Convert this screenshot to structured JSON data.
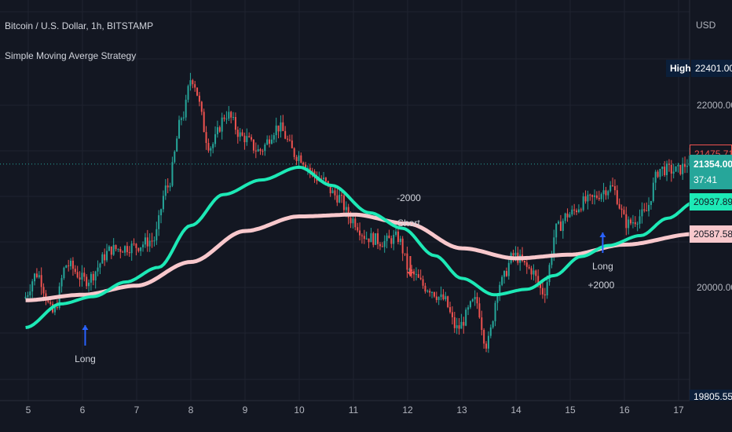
{
  "header": {
    "title": "Bitcoin / U.S. Dollar, 1h, BITSTAMP",
    "indicator": "Simple Moving Averge Strategy"
  },
  "price_scale": {
    "currency": "USD",
    "high_label": "High",
    "high_value": "22401.00",
    "level_22000": "22000.00",
    "level_20000": "20000.00",
    "last_value": "21354.00",
    "countdown": "37:41",
    "fast_ma_value": "20937.89",
    "slow_ma_value": "20587.58",
    "red_value": "21475.71",
    "low_partial": "19805.55"
  },
  "colors": {
    "background": "#131722",
    "up": "#26a69a",
    "down": "#ef5350",
    "fast_ma": "#1de9b6",
    "slow_ma": "#f8c8cc",
    "long_arrow": "#2962ff",
    "short_arrow": "#ef5350"
  },
  "chart_data": {
    "type": "candlestick",
    "x_ticks": [
      "5",
      "6",
      "7",
      "8",
      "9",
      "10",
      "11",
      "12",
      "13",
      "14",
      "15",
      "16",
      "17"
    ],
    "ylim": [
      19750,
      22450
    ],
    "close_anchors": [
      {
        "day": 4.95,
        "price": 19880
      },
      {
        "day": 5.2,
        "price": 20150
      },
      {
        "day": 5.5,
        "price": 19720
      },
      {
        "day": 5.75,
        "price": 20250
      },
      {
        "day": 6.1,
        "price": 20080
      },
      {
        "day": 6.6,
        "price": 20420
      },
      {
        "day": 7.0,
        "price": 20450
      },
      {
        "day": 7.35,
        "price": 20520
      },
      {
        "day": 7.6,
        "price": 21100
      },
      {
        "day": 7.9,
        "price": 21900
      },
      {
        "day": 8.05,
        "price": 22300
      },
      {
        "day": 8.4,
        "price": 21550
      },
      {
        "day": 8.7,
        "price": 21900
      },
      {
        "day": 9.0,
        "price": 21650
      },
      {
        "day": 9.3,
        "price": 21500
      },
      {
        "day": 9.65,
        "price": 21760
      },
      {
        "day": 10.0,
        "price": 21450
      },
      {
        "day": 10.4,
        "price": 21200
      },
      {
        "day": 10.75,
        "price": 21000
      },
      {
        "day": 11.0,
        "price": 20750
      },
      {
        "day": 11.3,
        "price": 20550
      },
      {
        "day": 11.6,
        "price": 20500
      },
      {
        "day": 11.85,
        "price": 20550
      },
      {
        "day": 12.1,
        "price": 20150
      },
      {
        "day": 12.4,
        "price": 20000
      },
      {
        "day": 12.7,
        "price": 19870
      },
      {
        "day": 12.95,
        "price": 19550
      },
      {
        "day": 13.3,
        "price": 19850
      },
      {
        "day": 13.5,
        "price": 19380
      },
      {
        "day": 13.75,
        "price": 20050
      },
      {
        "day": 14.0,
        "price": 20350
      },
      {
        "day": 14.3,
        "price": 20200
      },
      {
        "day": 14.55,
        "price": 19950
      },
      {
        "day": 14.8,
        "price": 20650
      },
      {
        "day": 15.0,
        "price": 20800
      },
      {
        "day": 15.35,
        "price": 20950
      },
      {
        "day": 15.8,
        "price": 21100
      },
      {
        "day": 16.1,
        "price": 20700
      },
      {
        "day": 16.4,
        "price": 20800
      },
      {
        "day": 16.7,
        "price": 21300
      },
      {
        "day": 17.0,
        "price": 21280
      },
      {
        "day": 17.3,
        "price": 21400
      }
    ],
    "series": [
      {
        "name": "Fast MA",
        "points": [
          {
            "day": 4.95,
            "price": 19560
          },
          {
            "day": 5.6,
            "price": 19820
          },
          {
            "day": 6.2,
            "price": 19900
          },
          {
            "day": 6.8,
            "price": 20060
          },
          {
            "day": 7.4,
            "price": 20220
          },
          {
            "day": 8.0,
            "price": 20680
          },
          {
            "day": 8.6,
            "price": 21020
          },
          {
            "day": 9.3,
            "price": 21180
          },
          {
            "day": 10.0,
            "price": 21320
          },
          {
            "day": 10.6,
            "price": 21120
          },
          {
            "day": 11.3,
            "price": 20820
          },
          {
            "day": 11.9,
            "price": 20650
          },
          {
            "day": 12.5,
            "price": 20350
          },
          {
            "day": 13.0,
            "price": 20100
          },
          {
            "day": 13.6,
            "price": 19920
          },
          {
            "day": 14.2,
            "price": 19980
          },
          {
            "day": 14.7,
            "price": 20130
          },
          {
            "day": 15.2,
            "price": 20340
          },
          {
            "day": 15.7,
            "price": 20460
          },
          {
            "day": 16.3,
            "price": 20570
          },
          {
            "day": 16.8,
            "price": 20760
          },
          {
            "day": 17.3,
            "price": 20937
          }
        ]
      },
      {
        "name": "Slow MA",
        "points": [
          {
            "day": 4.95,
            "price": 19860
          },
          {
            "day": 6.0,
            "price": 19920
          },
          {
            "day": 7.0,
            "price": 20020
          },
          {
            "day": 8.0,
            "price": 20280
          },
          {
            "day": 9.0,
            "price": 20620
          },
          {
            "day": 10.0,
            "price": 20780
          },
          {
            "day": 11.0,
            "price": 20800
          },
          {
            "day": 12.0,
            "price": 20700
          },
          {
            "day": 13.0,
            "price": 20430
          },
          {
            "day": 14.0,
            "price": 20320
          },
          {
            "day": 15.0,
            "price": 20360
          },
          {
            "day": 16.0,
            "price": 20470
          },
          {
            "day": 17.3,
            "price": 20587
          }
        ]
      }
    ],
    "signals": [
      {
        "label": "Long",
        "day": 6.05,
        "dir": "up"
      },
      {
        "label": "Short",
        "sub": "-2000",
        "day": 12.05,
        "dir": "down"
      },
      {
        "label": "Long",
        "sub": "+2000",
        "day": 15.6,
        "dir": "up"
      }
    ]
  }
}
